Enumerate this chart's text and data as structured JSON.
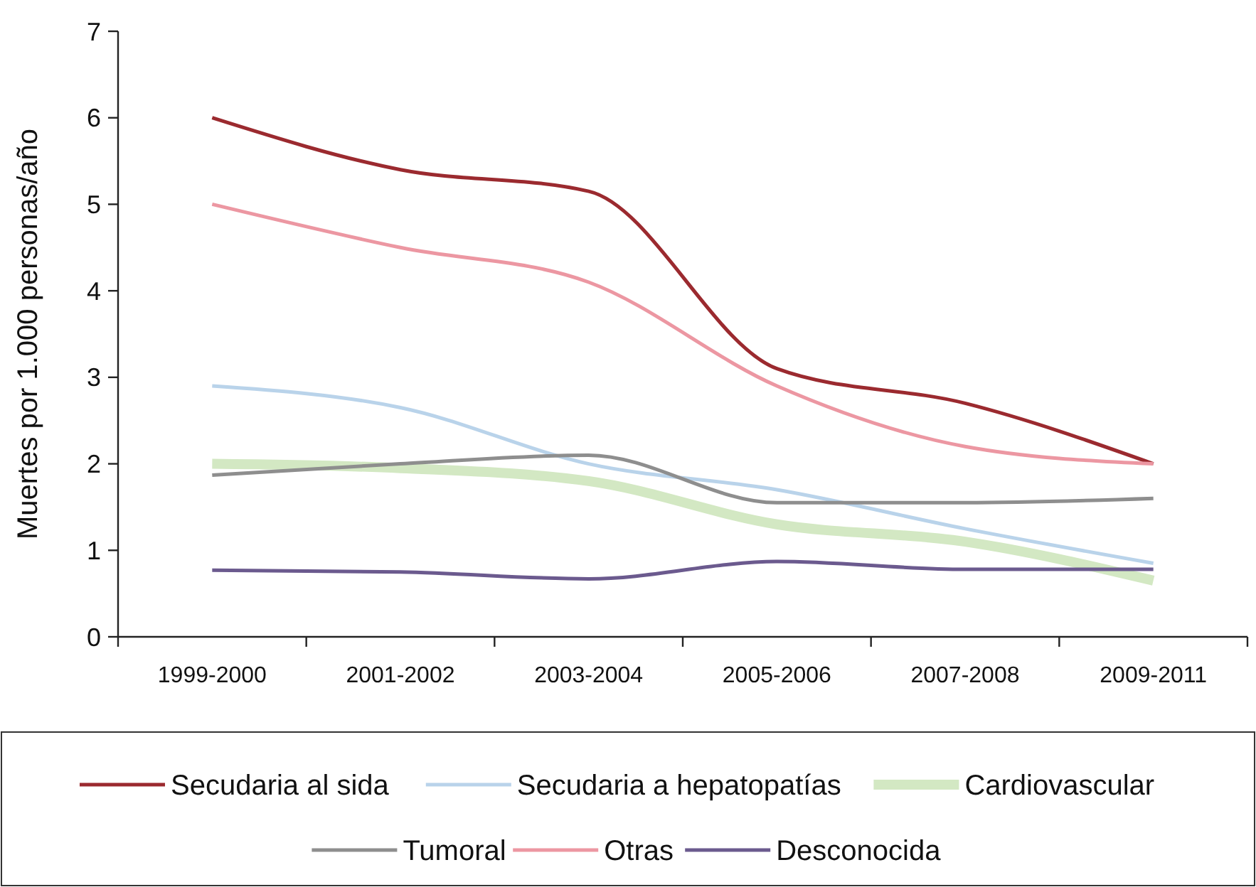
{
  "chart_data": {
    "type": "line",
    "ylabel": "Muertes por 1.000 personas/año",
    "categories": [
      "1999-2000",
      "2001-2002",
      "2003-2004",
      "2005-2006",
      "2007-2008",
      "2009-2011"
    ],
    "ylim": [
      0,
      7
    ],
    "yticks": [
      0,
      1,
      2,
      3,
      4,
      5,
      6,
      7
    ],
    "grid": false,
    "legend": "bottom",
    "marker": "none",
    "line_style": "solid",
    "series": [
      {
        "name": "Secudaria al sida",
        "color": "#9b2a2f",
        "values": [
          6.0,
          5.4,
          5.15,
          3.1,
          2.7,
          2.0
        ]
      },
      {
        "name": "Secudaria a hepatopatías",
        "color": "#b9d3ea",
        "values": [
          2.9,
          2.65,
          2.0,
          1.7,
          1.25,
          0.85
        ]
      },
      {
        "name": "Cardiovascular",
        "color": "#d3e8c3",
        "values": [
          2.0,
          1.95,
          1.8,
          1.3,
          1.1,
          0.65
        ]
      },
      {
        "name": "Tumoral",
        "color": "#8e8e8e",
        "values": [
          1.87,
          2.0,
          2.1,
          1.55,
          1.55,
          1.6
        ]
      },
      {
        "name": "Otras",
        "color": "#ec97a2",
        "values": [
          5.0,
          4.5,
          4.1,
          2.9,
          2.2,
          2.0
        ]
      },
      {
        "name": "Desconocida",
        "color": "#6b5a8e",
        "values": [
          0.77,
          0.75,
          0.67,
          0.87,
          0.78,
          0.78
        ]
      }
    ]
  }
}
